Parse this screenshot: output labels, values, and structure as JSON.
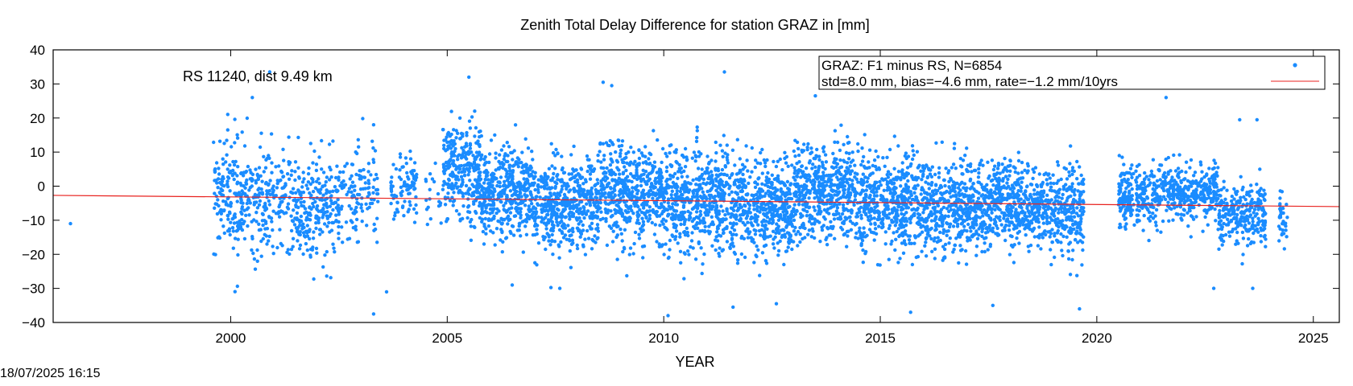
{
  "chart_data": {
    "type": "scatter",
    "title": "Zenith Total Delay Difference for station GRAZ in [mm]",
    "xlabel": "YEAR",
    "ylabel": "",
    "xlim": [
      1995.9,
      2025.6
    ],
    "ylim": [
      -40,
      40
    ],
    "xticks": [
      2000,
      2005,
      2010,
      2015,
      2020,
      2025
    ],
    "yticks": [
      -40,
      -30,
      -20,
      -10,
      0,
      10,
      20,
      30,
      40
    ],
    "grid": false,
    "legend_position": "top-right",
    "annotation": "RS 11240, dist 9.49 km",
    "series": [
      {
        "name": "GRAZ: F1 minus RS, N=6854",
        "kind": "points",
        "color": "#1a8cff",
        "stats": "std=8.0 mm, bias=−4.6 mm, rate=−1.2 mm/10yrs",
        "segments": [
          {
            "start": 1999.6,
            "end": 2000.6,
            "mean": -3.0,
            "std": 8.5,
            "count": 220
          },
          {
            "start": 2000.6,
            "end": 2001.5,
            "mean": -4.0,
            "std": 7.5,
            "count": 170
          },
          {
            "start": 2001.5,
            "end": 2002.5,
            "mean": -6.0,
            "std": 7.5,
            "count": 240
          },
          {
            "start": 2002.5,
            "end": 2003.4,
            "mean": -2.0,
            "std": 7.0,
            "count": 120
          },
          {
            "start": 2003.7,
            "end": 2004.3,
            "mean": 0.0,
            "std": 5.0,
            "count": 90
          },
          {
            "start": 2004.5,
            "end": 2004.9,
            "mean": -2.0,
            "std": 6.0,
            "count": 20
          },
          {
            "start": 2004.9,
            "end": 2005.8,
            "mean": 5.0,
            "std": 7.5,
            "count": 300
          },
          {
            "start": 2005.8,
            "end": 2007.0,
            "mean": -2.0,
            "std": 6.5,
            "count": 420
          },
          {
            "start": 2007.0,
            "end": 2008.5,
            "mean": -5.0,
            "std": 6.5,
            "count": 500
          },
          {
            "start": 2008.5,
            "end": 2010.0,
            "mean": -2.0,
            "std": 7.0,
            "count": 500
          },
          {
            "start": 2010.0,
            "end": 2011.5,
            "mean": -3.0,
            "std": 7.5,
            "count": 500
          },
          {
            "start": 2011.5,
            "end": 2013.0,
            "mean": -6.0,
            "std": 7.0,
            "count": 500
          },
          {
            "start": 2013.0,
            "end": 2014.5,
            "mean": -2.0,
            "std": 7.0,
            "count": 500
          },
          {
            "start": 2014.5,
            "end": 2016.0,
            "mean": -4.0,
            "std": 7.0,
            "count": 500
          },
          {
            "start": 2016.0,
            "end": 2017.5,
            "mean": -6.0,
            "std": 6.5,
            "count": 500
          },
          {
            "start": 2017.5,
            "end": 2019.0,
            "mean": -5.0,
            "std": 6.0,
            "count": 500
          },
          {
            "start": 2019.0,
            "end": 2019.7,
            "mean": -7.0,
            "std": 6.5,
            "count": 230
          },
          {
            "start": 2020.5,
            "end": 2021.5,
            "mean": -3.0,
            "std": 4.5,
            "count": 260
          },
          {
            "start": 2021.5,
            "end": 2022.8,
            "mean": -2.0,
            "std": 4.0,
            "count": 330
          },
          {
            "start": 2022.8,
            "end": 2023.9,
            "mean": -8.0,
            "std": 4.5,
            "count": 260
          },
          {
            "start": 2024.2,
            "end": 2024.4,
            "mean": -10.0,
            "std": 4.0,
            "count": 40
          }
        ],
        "outliers": [
          {
            "x": 1996.3,
            "y": -11
          },
          {
            "x": 2000.5,
            "y": 26
          },
          {
            "x": 2000.9,
            "y": 33.5
          },
          {
            "x": 2003.3,
            "y": 18
          },
          {
            "x": 2003.3,
            "y": -37.5
          },
          {
            "x": 2003.6,
            "y": -31
          },
          {
            "x": 2005.5,
            "y": 32
          },
          {
            "x": 2006.5,
            "y": -29
          },
          {
            "x": 2007.6,
            "y": -30
          },
          {
            "x": 2008.6,
            "y": 30.5
          },
          {
            "x": 2008.8,
            "y": 29.5
          },
          {
            "x": 2010.1,
            "y": -38
          },
          {
            "x": 2011.4,
            "y": 33.5
          },
          {
            "x": 2011.6,
            "y": -35.5
          },
          {
            "x": 2012.6,
            "y": -34.5
          },
          {
            "x": 2013.5,
            "y": 26.5
          },
          {
            "x": 2015.7,
            "y": -37
          },
          {
            "x": 2017.6,
            "y": -35
          },
          {
            "x": 2019.6,
            "y": -36
          },
          {
            "x": 2021.6,
            "y": 26
          },
          {
            "x": 2022.7,
            "y": -30
          },
          {
            "x": 2023.3,
            "y": 19.5
          },
          {
            "x": 2023.7,
            "y": 19.5
          },
          {
            "x": 2023.6,
            "y": -30
          }
        ]
      },
      {
        "name": "",
        "kind": "line",
        "color": "#e8221f",
        "x": [
          1995.9,
          2025.6
        ],
        "y": [
          -2.7,
          -6.0
        ]
      }
    ]
  },
  "timestamp": "18/07/2025 16:15"
}
